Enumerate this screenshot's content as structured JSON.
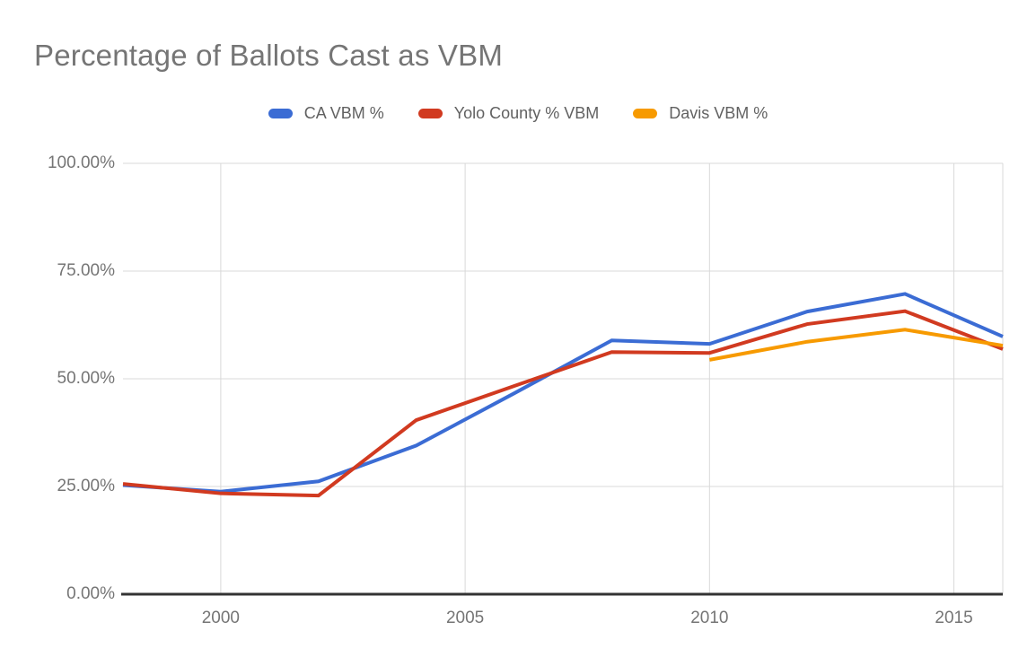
{
  "chart_data": {
    "type": "line",
    "title": "Percentage of Ballots Cast as VBM",
    "xlabel": "",
    "ylabel": "",
    "xlim": [
      1998,
      2016
    ],
    "ylim": [
      0,
      100
    ],
    "grid": true,
    "legend_position": "top-center",
    "x_ticks": [
      {
        "label": "2000",
        "value": 2000
      },
      {
        "label": "2005",
        "value": 2005
      },
      {
        "label": "2010",
        "value": 2010
      },
      {
        "label": "2015",
        "value": 2015
      }
    ],
    "y_ticks": [
      {
        "label": "0.00%",
        "value": 0
      },
      {
        "label": "25.00%",
        "value": 25
      },
      {
        "label": "50.00%",
        "value": 50
      },
      {
        "label": "75.00%",
        "value": 75
      },
      {
        "label": "100.00%",
        "value": 100
      }
    ],
    "series": [
      {
        "name": "CA VBM %",
        "color": "#3B6CD4",
        "x": [
          1998,
          2000,
          2002,
          2004,
          2006,
          2008,
          2010,
          2012,
          2014,
          2016
        ],
        "values": [
          25.3,
          23.8,
          26.2,
          34.5,
          46.6,
          58.9,
          58.1,
          65.6,
          69.7,
          59.8
        ]
      },
      {
        "name": "Yolo County % VBM",
        "color": "#D13A20",
        "x": [
          1998,
          2000,
          2002,
          2004,
          2006,
          2008,
          2010,
          2012,
          2014,
          2016
        ],
        "values": [
          25.6,
          23.4,
          22.9,
          40.4,
          48.3,
          56.2,
          56.0,
          62.7,
          65.7,
          56.9
        ]
      },
      {
        "name": "Davis VBM %",
        "color": "#F79A00",
        "x": [
          2010,
          2012,
          2014,
          2016
        ],
        "values": [
          54.4,
          58.6,
          61.4,
          57.7
        ]
      }
    ]
  },
  "colors": {
    "background": "#FFFFFF",
    "axis_line": "#333333",
    "gridline": "#D9D9D9",
    "title_text": "#757575",
    "tick_text": "#757575",
    "legend_text": "#616161"
  }
}
